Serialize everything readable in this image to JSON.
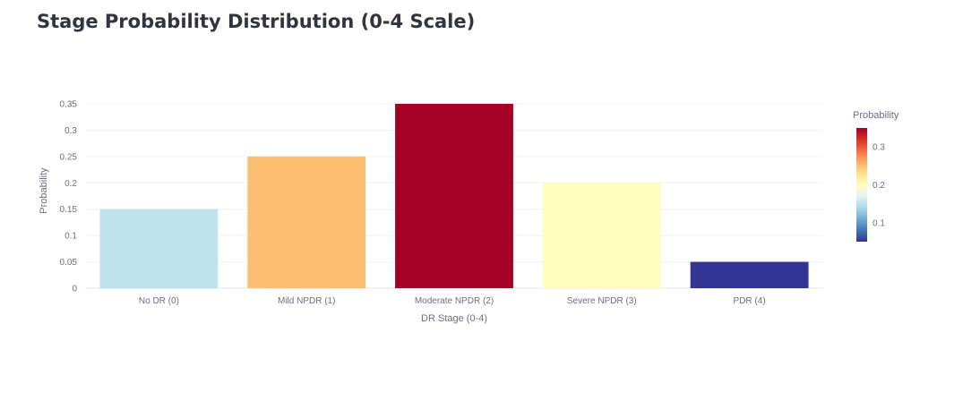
{
  "page": {
    "title": "Stage Probability Distribution (0-4 Scale)"
  },
  "chart_data": {
    "type": "bar",
    "xlabel": "DR Stage (0-4)",
    "ylabel": "Probability",
    "categories": [
      "No DR (0)",
      "Mild NPDR (1)",
      "Moderate NPDR (2)",
      "Severe NPDR (3)",
      "PDR (4)"
    ],
    "values": [
      0.15,
      0.25,
      0.35,
      0.2,
      0.05
    ],
    "bar_colors": [
      "#bfe3ec",
      "#fcbf71",
      "#a50026",
      "#fefec0",
      "#313695"
    ],
    "ylim": [
      0,
      0.35
    ],
    "y_ticks": [
      0,
      0.05,
      0.1,
      0.15,
      0.2,
      0.25,
      0.3,
      0.35
    ],
    "y_tick_labels": [
      "0",
      "0.05",
      "0.1",
      "0.15",
      "0.2",
      "0.25",
      "0.3",
      "0.35"
    ],
    "grid": true,
    "colorbar": {
      "title": "Probability",
      "colorscale": "RdYlBu_r",
      "range": [
        0.05,
        0.35
      ],
      "ticks": [
        0.1,
        0.2,
        0.3
      ],
      "tick_labels": [
        "0.1",
        "0.2",
        "0.3"
      ],
      "stops": [
        "#313695",
        "#4575b4",
        "#74add1",
        "#abd9e9",
        "#e0f3f8",
        "#fefec0",
        "#fee090",
        "#fdae61",
        "#f46d43",
        "#d73027",
        "#a50026"
      ]
    }
  }
}
